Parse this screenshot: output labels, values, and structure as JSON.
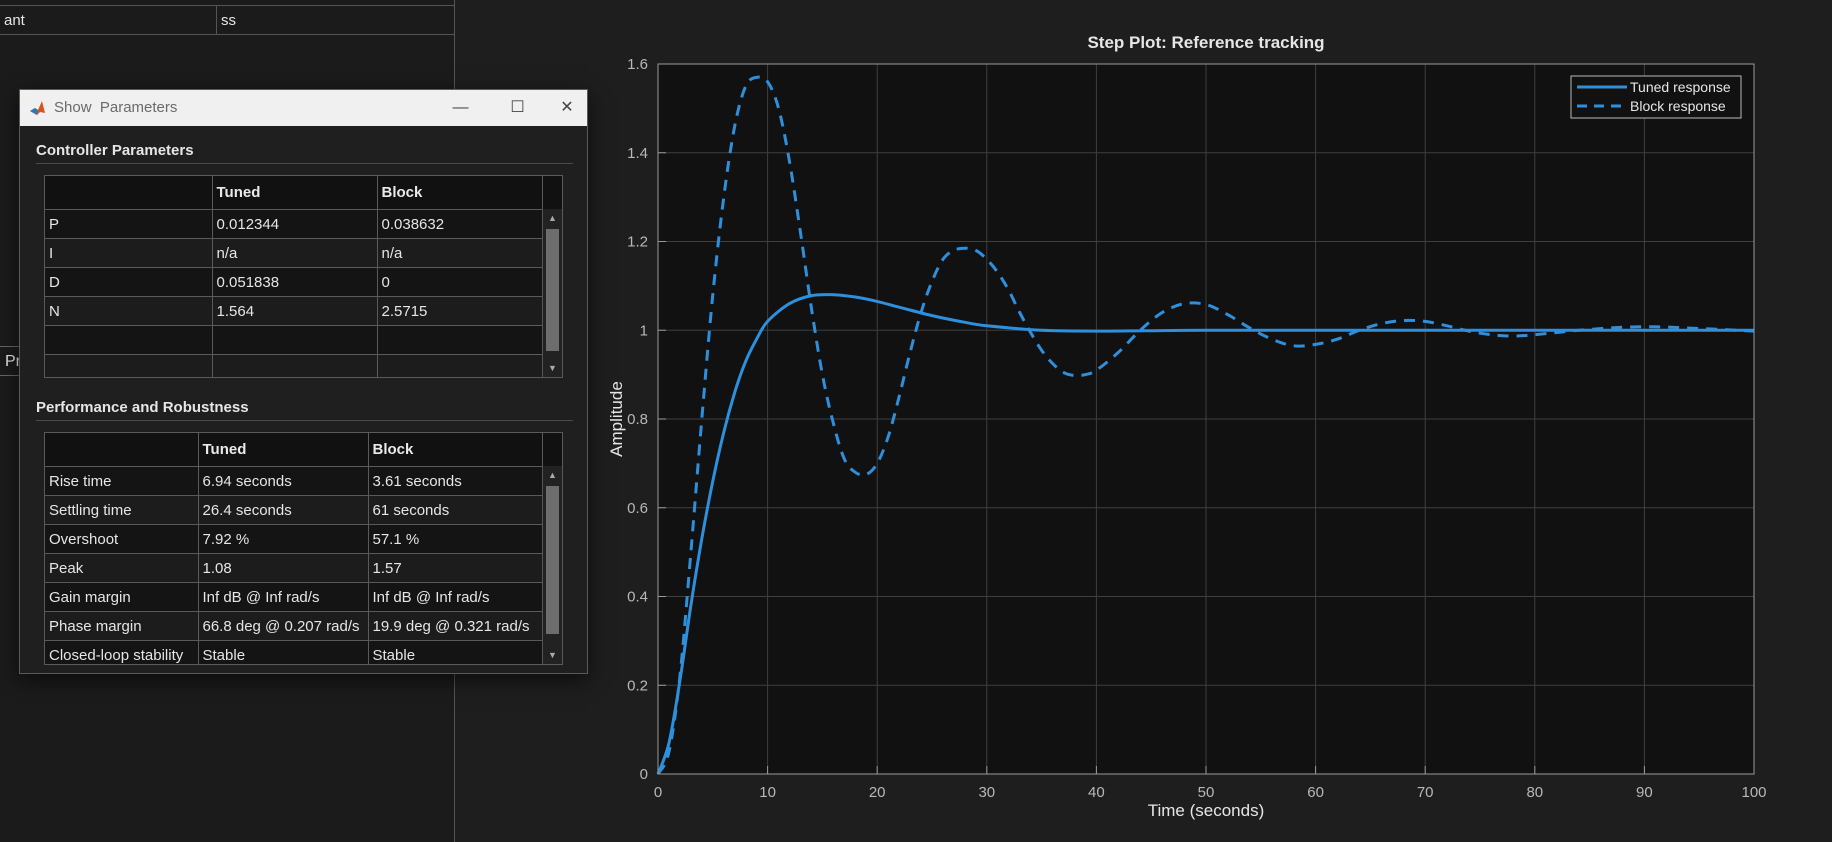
{
  "background": {
    "table_rows": [
      {
        "c1": "ant",
        "c2": "ss"
      }
    ],
    "tab_label": "Pr"
  },
  "dialog": {
    "title": "Show  Parameters",
    "controls": {
      "minimize": "—",
      "maximize": "☐",
      "close": "✕"
    },
    "controller": {
      "title": "Controller Parameters",
      "headers": [
        "",
        "Tuned",
        "Block"
      ],
      "rows": [
        [
          "P",
          "0.012344",
          "0.038632"
        ],
        [
          "I",
          "n/a",
          "n/a"
        ],
        [
          "D",
          "0.051838",
          "0"
        ],
        [
          "N",
          "1.564",
          "2.5715"
        ],
        [
          "",
          "",
          ""
        ],
        [
          "",
          "",
          ""
        ]
      ]
    },
    "performance": {
      "title": "Performance and Robustness",
      "headers": [
        "",
        "Tuned",
        "Block"
      ],
      "rows": [
        [
          "Rise time",
          "6.94 seconds",
          "3.61 seconds"
        ],
        [
          "Settling time",
          "26.4 seconds",
          "61 seconds"
        ],
        [
          "Overshoot",
          "7.92 %",
          "57.1 %"
        ],
        [
          "Peak",
          "1.08",
          "1.57"
        ],
        [
          "Gain margin",
          "Inf dB @ Inf rad/s",
          "Inf dB @ Inf rad/s"
        ],
        [
          "Phase margin",
          "66.8 deg @ 0.207 rad/s",
          "19.9 deg @ 0.321 rad/s"
        ],
        [
          "Closed-loop stability",
          "Stable",
          "Stable"
        ]
      ]
    }
  },
  "chart_data": {
    "type": "line",
    "title": "Step Plot: Reference tracking",
    "xlabel": "Time (seconds)",
    "ylabel": "Amplitude",
    "xlim": [
      0,
      100
    ],
    "ylim": [
      0,
      1.6
    ],
    "xticks": [
      0,
      10,
      20,
      30,
      40,
      50,
      60,
      70,
      80,
      90,
      100
    ],
    "yticks": [
      0,
      0.2,
      0.4,
      0.6,
      0.8,
      1,
      1.2,
      1.4,
      1.6
    ],
    "grid": true,
    "legend_position": "top-right",
    "series": [
      {
        "name": "Tuned response",
        "style": "solid",
        "color": "#2e8fdc",
        "x": [
          0,
          1,
          2,
          3,
          4,
          5,
          6,
          7,
          8,
          9,
          10,
          12,
          14,
          16,
          18,
          20,
          22,
          25,
          28,
          30,
          35,
          40,
          45,
          50,
          60,
          70,
          80,
          90,
          100
        ],
        "y": [
          0,
          0.07,
          0.21,
          0.38,
          0.53,
          0.66,
          0.77,
          0.86,
          0.93,
          0.98,
          1.02,
          1.06,
          1.078,
          1.08,
          1.075,
          1.065,
          1.052,
          1.033,
          1.018,
          1.01,
          1.0,
          0.998,
          0.999,
          1.0,
          1.0,
          1.0,
          1.0,
          1.0,
          1.0
        ]
      },
      {
        "name": "Block response",
        "style": "dashed",
        "color": "#2e8fdc",
        "x": [
          0,
          1,
          2,
          3,
          4,
          5,
          6,
          7,
          8,
          9,
          10,
          11,
          12,
          13,
          14,
          15,
          16,
          17,
          18,
          19,
          20,
          21,
          22,
          23,
          24,
          25,
          26,
          27,
          28,
          29,
          30,
          31,
          32,
          33,
          34,
          35,
          36,
          37,
          38,
          39,
          40,
          42,
          44,
          46,
          48,
          50,
          52,
          54,
          56,
          58,
          60,
          62,
          64,
          66,
          68,
          70,
          72,
          74,
          76,
          78,
          80,
          85,
          90,
          95,
          100
        ],
        "y": [
          0,
          0.05,
          0.22,
          0.5,
          0.8,
          1.08,
          1.3,
          1.46,
          1.55,
          1.57,
          1.56,
          1.5,
          1.38,
          1.22,
          1.05,
          0.9,
          0.79,
          0.71,
          0.68,
          0.675,
          0.7,
          0.76,
          0.85,
          0.95,
          1.04,
          1.11,
          1.16,
          1.18,
          1.185,
          1.18,
          1.16,
          1.13,
          1.09,
          1.04,
          0.995,
          0.955,
          0.925,
          0.905,
          0.898,
          0.9,
          0.91,
          0.95,
          1.0,
          1.04,
          1.06,
          1.058,
          1.035,
          1.005,
          0.98,
          0.965,
          0.968,
          0.98,
          1.0,
          1.015,
          1.022,
          1.02,
          1.01,
          0.998,
          0.99,
          0.987,
          0.99,
          1.002,
          1.008,
          1.004,
          0.998
        ]
      }
    ]
  }
}
